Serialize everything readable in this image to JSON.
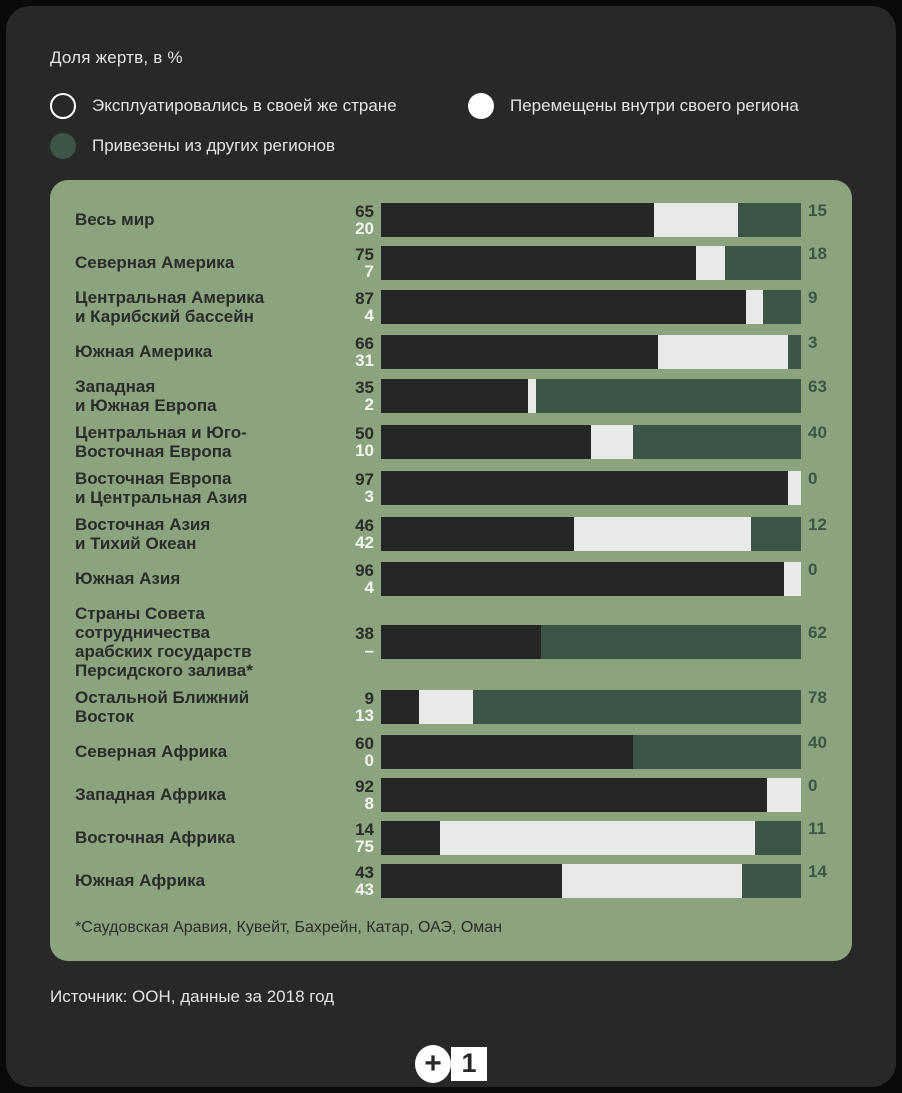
{
  "header": {
    "title": "Доля жертв, в %"
  },
  "legend": {
    "items": [
      {
        "id": "own-country",
        "marker": "outline",
        "label": "Эксплуатировались в своей же стране"
      },
      {
        "id": "within-region",
        "marker": "white",
        "label": "Перемещены внутри своего региона"
      },
      {
        "id": "other-regions",
        "marker": "green",
        "label": "Привезены из других регионов"
      }
    ]
  },
  "chart_data": {
    "type": "bar",
    "orientation": "horizontal",
    "stacked": true,
    "unit": "%",
    "title": "Доля жертв, в %",
    "series_names": [
      "Эксплуатировались в своей же стране",
      "Перемещены внутри своего региона",
      "Привезены из других регионов"
    ],
    "legend_position": "top",
    "grid": false,
    "xlim": [
      0,
      100
    ],
    "rows": [
      {
        "region": "Весь мир",
        "label_lines": [
          "Весь мир"
        ],
        "values": {
          "own": "65",
          "within": "20",
          "other": "15"
        }
      },
      {
        "region": "Северная Америка",
        "label_lines": [
          "Северная Америка"
        ],
        "values": {
          "own": "75",
          "within": "7",
          "other": "18"
        }
      },
      {
        "region": "Центральная Америка и Карибский бассейн",
        "label_lines": [
          "Центральная Америка",
          "и Карибский бассейн"
        ],
        "values": {
          "own": "87",
          "within": "4",
          "other": "9"
        }
      },
      {
        "region": "Южная Америка",
        "label_lines": [
          "Южная Америка"
        ],
        "values": {
          "own": "66",
          "within": "31",
          "other": "3"
        }
      },
      {
        "region": "Западная и Южная Европа",
        "label_lines": [
          "Западная",
          "и Южная Европа"
        ],
        "values": {
          "own": "35",
          "within": "2",
          "other": "63"
        }
      },
      {
        "region": "Центральная и Юго-Восточная Европа",
        "label_lines": [
          "Центральная и Юго-",
          "Восточная Европа"
        ],
        "values": {
          "own": "50",
          "within": "10",
          "other": "40"
        }
      },
      {
        "region": "Восточная Европа и Центральная Азия",
        "label_lines": [
          "Восточная Европа",
          "и Центральная Азия"
        ],
        "values": {
          "own": "97",
          "within": "3",
          "other": "0"
        }
      },
      {
        "region": "Восточная Азия и Тихий Океан",
        "label_lines": [
          "Восточная Азия",
          "и Тихий Океан"
        ],
        "values": {
          "own": "46",
          "within": "42",
          "other": "12"
        }
      },
      {
        "region": "Южная Азия",
        "label_lines": [
          "Южная Азия"
        ],
        "values": {
          "own": "96",
          "within": "4",
          "other": "0"
        }
      },
      {
        "region": "Страны Совета сотрудничества арабских государств Персидского залива*",
        "label_lines": [
          "Страны Совета сотрудничества",
          "арабских государств",
          "Персидского залива*"
        ],
        "values": {
          "own": "38",
          "within": "–",
          "other": "62"
        }
      },
      {
        "region": "Остальной Ближний Восток",
        "label_lines": [
          "Остальной Ближний",
          "Восток"
        ],
        "values": {
          "own": "9",
          "within": "13",
          "other": "78"
        }
      },
      {
        "region": "Северная Африка",
        "label_lines": [
          "Северная Африка"
        ],
        "values": {
          "own": "60",
          "within": "0",
          "other": "40"
        }
      },
      {
        "region": "Западная Африка",
        "label_lines": [
          "Западная Африка"
        ],
        "values": {
          "own": "92",
          "within": "8",
          "other": "0"
        }
      },
      {
        "region": "Восточная Африка",
        "label_lines": [
          "Восточная Африка"
        ],
        "values": {
          "own": "14",
          "within": "75",
          "other": "11"
        }
      },
      {
        "region": "Южная Африка",
        "label_lines": [
          "Южная Африка"
        ],
        "values": {
          "own": "43",
          "within": "43",
          "other": "14"
        }
      }
    ]
  },
  "footnote": "*Саудовская Аравия, Кувейт, Бахрейн, Катар, ОАЭ, Оман",
  "source": "Источник: ООН, данные за 2018 год",
  "logo": {
    "plus": "+",
    "one": "1"
  },
  "colors": {
    "background": "#0a0a0a",
    "card": "#282828",
    "panel": "#8CA47E",
    "bar_dark": "#262626",
    "bar_white": "#E9E9E7",
    "bar_green": "#3C5546",
    "text_light": "#E3E3E3",
    "text_dark": "#2B2B2B",
    "value_white": "#F2F2F0",
    "value_green": "#3C5546"
  }
}
